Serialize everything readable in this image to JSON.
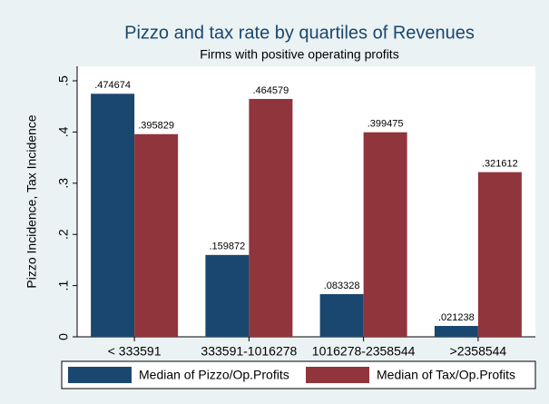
{
  "chart_data": {
    "type": "bar",
    "title": "Pizzo and tax rate by quartiles of Revenues",
    "subtitle": "Firms with positive operating profits",
    "y_label": "Pizzo Incidence, Tax Incidence",
    "categories": [
      "< 333591",
      "333591-1016278",
      "1016278-2358544",
      ">2358544"
    ],
    "series": [
      {
        "name": "Median of Pizzo/Op.Profits",
        "color": "#1a476f",
        "values": [
          0.474674,
          0.159872,
          0.083328,
          0.021238
        ],
        "value_labels": [
          ".474674",
          ".159872",
          ".083328",
          ".021238"
        ]
      },
      {
        "name": "Median of Tax/Op.Profits",
        "color": "#90353b",
        "values": [
          0.395829,
          0.464579,
          0.399475,
          0.321612
        ],
        "value_labels": [
          ".395829",
          ".464579",
          ".399475",
          ".321612"
        ]
      }
    ],
    "ylim": [
      0,
      0.5
    ],
    "yticks": [
      0,
      {
        "value": 0.1,
        "label": ".1"
      },
      {
        "value": 0.2,
        "label": ".2"
      },
      {
        "value": 0.3,
        "label": ".3"
      },
      {
        "value": 0.4,
        "label": ".4"
      },
      {
        "value": 0.5,
        "label": ".5"
      }
    ],
    "grid": false
  }
}
